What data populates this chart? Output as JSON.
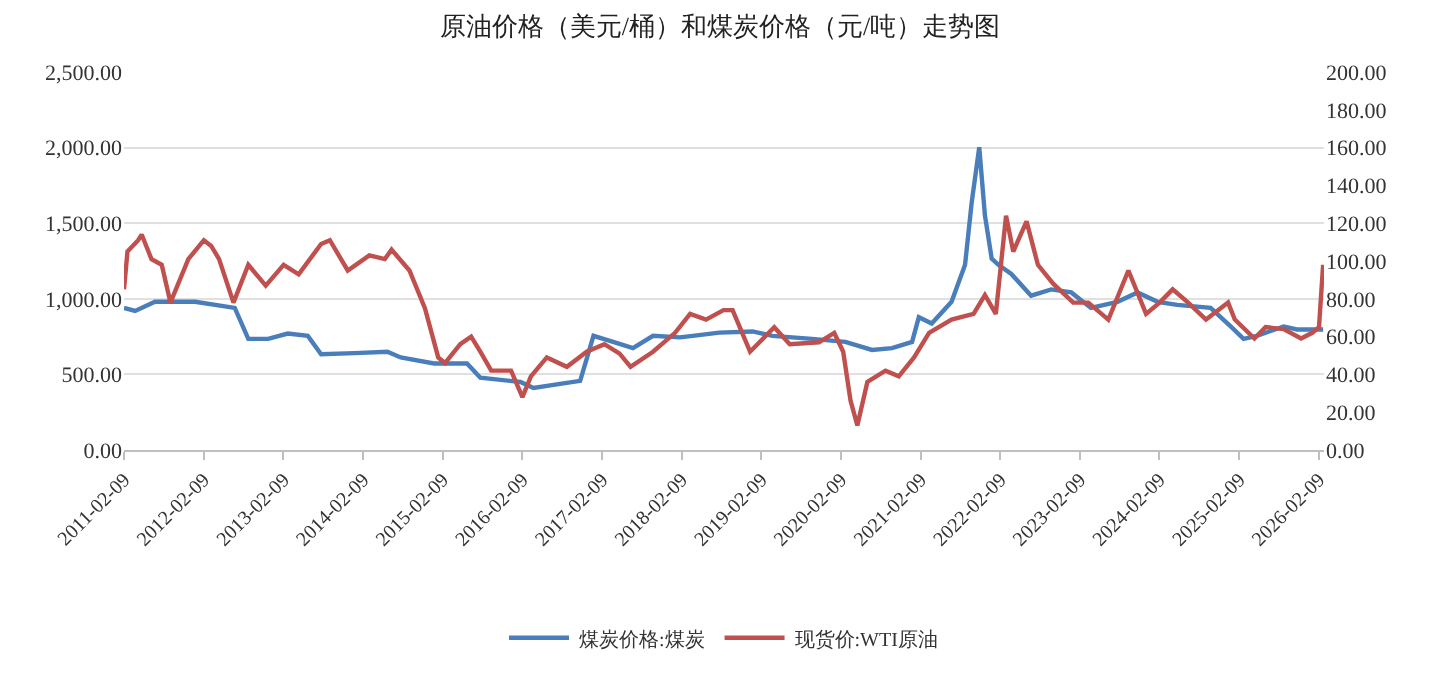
{
  "chart_data": {
    "type": "line",
    "title": "原油价格（美元/桶）和煤炭价格（元/吨）走势图",
    "xlim": [
      "2011-02-09",
      "2026-03-05"
    ],
    "xticks": [
      "2011-02-09",
      "2012-02-09",
      "2013-02-09",
      "2014-02-09",
      "2015-02-09",
      "2016-02-09",
      "2017-02-09",
      "2018-02-09",
      "2019-02-09",
      "2020-02-09",
      "2021-02-09",
      "2022-02-09",
      "2023-02-09",
      "2024-02-09",
      "2025-02-09",
      "2026-02-09"
    ],
    "ylim": [
      0,
      2500
    ],
    "yticks": [
      {
        "value": 0,
        "label": "0.00"
      },
      {
        "value": 500,
        "label": "500.00"
      },
      {
        "value": 1000,
        "label": "1,000.00"
      },
      {
        "value": 1500,
        "label": "1,500.00"
      },
      {
        "value": 2000,
        "label": "2,000.00"
      },
      {
        "value": 2500,
        "label": "2,500.00"
      }
    ],
    "y2lim": [
      0,
      200
    ],
    "y2ticks": [
      {
        "value": 0,
        "label": "0.00"
      },
      {
        "value": 20,
        "label": "20.00"
      },
      {
        "value": 40,
        "label": "40.00"
      },
      {
        "value": 60,
        "label": "60.00"
      },
      {
        "value": 80,
        "label": "80.00"
      },
      {
        "value": 100,
        "label": "100.00"
      },
      {
        "value": 120,
        "label": "120.00"
      },
      {
        "value": 140,
        "label": "140.00"
      },
      {
        "value": 160,
        "label": "160.00"
      },
      {
        "value": 180,
        "label": "180.00"
      },
      {
        "value": 200,
        "label": "200.00"
      }
    ],
    "grid": "y",
    "legend": "bottom",
    "marker": "none",
    "line_style": "solid",
    "series": [
      {
        "name": "煤炭价格:煤炭",
        "color": "#4a7ebb",
        "x": [
          "2011-02-09",
          "2011-04-01",
          "2011-07-01",
          "2012-01-01",
          "2012-07-01",
          "2012-09-01",
          "2012-12-01",
          "2013-03-01",
          "2013-06-01",
          "2013-08-01",
          "2014-01-01",
          "2014-06-01",
          "2014-08-01",
          "2015-01-01",
          "2015-06-01",
          "2015-08-01",
          "2016-02-01",
          "2016-04-01",
          "2016-08-01",
          "2016-11-01",
          "2017-01-01",
          "2017-04-01",
          "2017-07-01",
          "2017-10-01",
          "2018-02-01",
          "2018-04-01",
          "2018-08-01",
          "2019-01-01",
          "2019-04-01",
          "2019-10-01",
          "2020-03-01",
          "2020-07-01",
          "2020-10-01",
          "2021-01-01",
          "2021-02-01",
          "2021-04-01",
          "2021-07-01",
          "2021-09-01",
          "2021-10-01",
          "2021-11-05",
          "2021-12-01",
          "2022-01-01",
          "2022-02-01",
          "2022-04-01",
          "2022-07-01",
          "2022-10-01",
          "2023-01-01",
          "2023-04-01",
          "2023-08-01",
          "2023-11-01",
          "2024-02-01",
          "2024-05-01",
          "2024-10-01",
          "2025-01-01",
          "2025-03-01",
          "2025-05-01",
          "2025-09-01",
          "2025-11-01",
          "2026-03-01"
        ],
        "values": [
          940,
          920,
          980,
          980,
          940,
          735,
          735,
          770,
          755,
          633,
          641,
          650,
          612,
          572,
          572,
          478,
          450,
          410,
          437,
          457,
          755,
          715,
          674,
          755,
          745,
          755,
          776,
          784,
          755,
          735,
          715,
          662,
          674,
          715,
          878,
          837,
          980,
          1225,
          1634,
          2002,
          1552,
          1266,
          1225,
          1164,
          1021,
          1062,
          1042,
          940,
          980,
          1042,
          980,
          960,
          940,
          817,
          735,
          755,
          817,
          797,
          797
        ]
      },
      {
        "name": "现货价:WTI原油",
        "color": "#c0504d",
        "axis": "y2",
        "x": [
          "2011-02-09",
          "2011-02-25",
          "2011-04-15",
          "2011-05-01",
          "2011-06-15",
          "2011-08-01",
          "2011-09-10",
          "2011-12-01",
          "2012-02-10",
          "2012-03-15",
          "2012-04-20",
          "2012-06-25",
          "2012-09-01",
          "2012-11-20",
          "2013-02-10",
          "2013-04-20",
          "2013-08-01",
          "2013-09-10",
          "2013-12-01",
          "2014-03-10",
          "2014-05-20",
          "2014-06-20",
          "2014-09-10",
          "2014-11-20",
          "2015-01-20",
          "2015-02-20",
          "2015-05-01",
          "2015-06-20",
          "2015-08-01",
          "2015-09-20",
          "2015-12-20",
          "2016-02-10",
          "2016-03-20",
          "2016-06-01",
          "2016-09-01",
          "2016-12-01",
          "2017-02-20",
          "2017-05-01",
          "2017-06-20",
          "2017-10-01",
          "2018-01-10",
          "2018-03-20",
          "2018-06-01",
          "2018-08-20",
          "2018-10-01",
          "2018-12-20",
          "2019-04-10",
          "2019-06-20",
          "2019-11-01",
          "2020-01-10",
          "2020-02-20",
          "2020-03-25",
          "2020-04-25",
          "2020-06-10",
          "2020-09-01",
          "2020-11-01",
          "2021-01-10",
          "2021-03-20",
          "2021-07-01",
          "2021-10-10",
          "2021-12-01",
          "2022-01-20",
          "2022-03-08",
          "2022-04-10",
          "2022-06-10",
          "2022-08-01",
          "2022-10-10",
          "2023-01-10",
          "2023-03-20",
          "2023-06-20",
          "2023-09-20",
          "2023-12-10",
          "2024-02-10",
          "2024-04-10",
          "2024-06-20",
          "2024-09-10",
          "2024-12-20",
          "2025-01-20",
          "2025-04-20",
          "2025-06-10",
          "2025-09-01",
          "2025-11-20",
          "2026-01-10",
          "2026-02-10",
          "2026-03-01"
        ],
        "values": [
          85,
          105,
          111,
          114,
          101,
          98,
          78,
          101,
          111,
          108,
          101,
          78,
          98,
          87,
          98,
          93,
          109,
          111,
          95,
          103,
          101,
          106,
          95,
          75,
          49,
          46,
          56,
          60,
          52,
          42,
          42,
          28,
          39,
          49,
          44,
          52,
          56,
          51,
          44,
          52,
          62,
          72,
          69,
          74,
          74,
          52,
          65,
          56,
          57,
          62,
          52,
          26,
          13,
          36,
          42,
          39,
          49,
          62,
          69,
          72,
          82,
          72,
          124,
          105,
          121,
          98,
          88,
          78,
          78,
          69,
          95,
          72,
          78,
          85,
          78,
          69,
          78,
          69,
          59,
          65,
          64,
          59,
          62,
          65,
          98
        ]
      }
    ]
  }
}
